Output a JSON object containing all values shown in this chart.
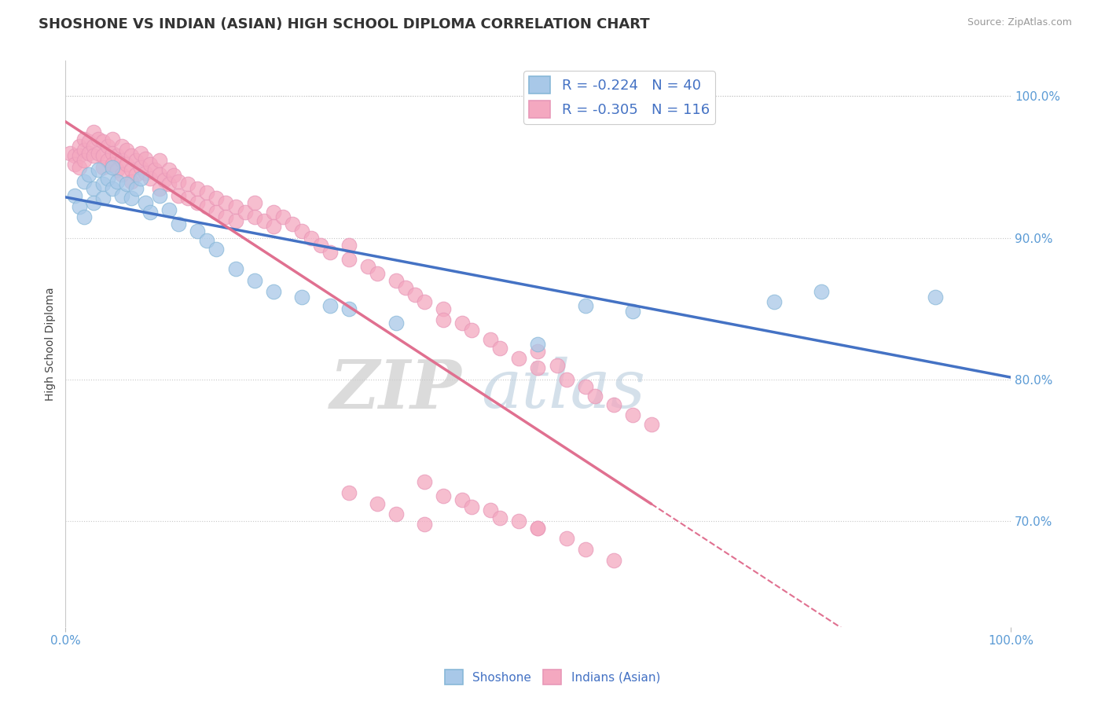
{
  "title": "SHOSHONE VS INDIAN (ASIAN) HIGH SCHOOL DIPLOMA CORRELATION CHART",
  "source": "Source: ZipAtlas.com",
  "ylabel": "High School Diploma",
  "xlim": [
    0.0,
    1.0
  ],
  "ylim": [
    0.625,
    1.025
  ],
  "yticks": [
    0.7,
    0.8,
    0.9,
    1.0
  ],
  "ytick_labels": [
    "70.0%",
    "80.0%",
    "90.0%",
    "100.0%"
  ],
  "shoshone_color": "#A8C8E8",
  "indian_color": "#F4A8C0",
  "shoshone_R": -0.224,
  "shoshone_N": 40,
  "indian_R": -0.305,
  "indian_N": 116,
  "legend_label_shoshone": "Shoshone",
  "legend_label_indian": "Indians (Asian)",
  "watermark_zip": "ZIP",
  "watermark_atlas": "atlas",
  "blue_line_color": "#4472C4",
  "pink_line_color": "#E07090",
  "shoshone_x": [
    0.01,
    0.015,
    0.02,
    0.02,
    0.025,
    0.03,
    0.03,
    0.035,
    0.04,
    0.04,
    0.045,
    0.05,
    0.05,
    0.055,
    0.06,
    0.065,
    0.07,
    0.075,
    0.08,
    0.085,
    0.09,
    0.1,
    0.11,
    0.12,
    0.14,
    0.15,
    0.16,
    0.18,
    0.2,
    0.22,
    0.25,
    0.28,
    0.3,
    0.35,
    0.5,
    0.55,
    0.6,
    0.75,
    0.8,
    0.92
  ],
  "shoshone_y": [
    0.93,
    0.922,
    0.94,
    0.915,
    0.945,
    0.935,
    0.925,
    0.948,
    0.938,
    0.928,
    0.942,
    0.95,
    0.935,
    0.94,
    0.93,
    0.938,
    0.928,
    0.935,
    0.942,
    0.925,
    0.918,
    0.93,
    0.92,
    0.91,
    0.905,
    0.898,
    0.892,
    0.878,
    0.87,
    0.862,
    0.858,
    0.852,
    0.85,
    0.84,
    0.825,
    0.852,
    0.848,
    0.855,
    0.862,
    0.858
  ],
  "indian_x": [
    0.005,
    0.01,
    0.01,
    0.015,
    0.015,
    0.015,
    0.02,
    0.02,
    0.02,
    0.025,
    0.025,
    0.03,
    0.03,
    0.03,
    0.035,
    0.035,
    0.04,
    0.04,
    0.04,
    0.045,
    0.045,
    0.05,
    0.05,
    0.05,
    0.055,
    0.055,
    0.06,
    0.06,
    0.06,
    0.065,
    0.065,
    0.07,
    0.07,
    0.07,
    0.075,
    0.075,
    0.08,
    0.08,
    0.085,
    0.085,
    0.09,
    0.09,
    0.095,
    0.1,
    0.1,
    0.1,
    0.105,
    0.11,
    0.11,
    0.115,
    0.12,
    0.12,
    0.13,
    0.13,
    0.14,
    0.14,
    0.15,
    0.15,
    0.16,
    0.16,
    0.17,
    0.17,
    0.18,
    0.18,
    0.19,
    0.2,
    0.2,
    0.21,
    0.22,
    0.22,
    0.23,
    0.24,
    0.25,
    0.26,
    0.27,
    0.28,
    0.3,
    0.3,
    0.32,
    0.33,
    0.35,
    0.36,
    0.37,
    0.38,
    0.4,
    0.4,
    0.42,
    0.43,
    0.45,
    0.46,
    0.48,
    0.5,
    0.5,
    0.52,
    0.53,
    0.55,
    0.56,
    0.58,
    0.6,
    0.62,
    0.3,
    0.33,
    0.35,
    0.38,
    0.42,
    0.45,
    0.48,
    0.5,
    0.38,
    0.4,
    0.43,
    0.46,
    0.5,
    0.53,
    0.55,
    0.58
  ],
  "indian_y": [
    0.96,
    0.958,
    0.952,
    0.965,
    0.958,
    0.95,
    0.97,
    0.962,
    0.955,
    0.968,
    0.96,
    0.975,
    0.965,
    0.958,
    0.97,
    0.96,
    0.968,
    0.958,
    0.95,
    0.965,
    0.955,
    0.97,
    0.96,
    0.952,
    0.958,
    0.948,
    0.965,
    0.955,
    0.945,
    0.962,
    0.952,
    0.958,
    0.948,
    0.94,
    0.955,
    0.945,
    0.96,
    0.95,
    0.956,
    0.946,
    0.952,
    0.942,
    0.948,
    0.955,
    0.945,
    0.935,
    0.941,
    0.948,
    0.938,
    0.944,
    0.94,
    0.93,
    0.938,
    0.928,
    0.935,
    0.925,
    0.932,
    0.922,
    0.928,
    0.918,
    0.925,
    0.915,
    0.922,
    0.912,
    0.918,
    0.925,
    0.915,
    0.912,
    0.918,
    0.908,
    0.915,
    0.91,
    0.905,
    0.9,
    0.895,
    0.89,
    0.895,
    0.885,
    0.88,
    0.875,
    0.87,
    0.865,
    0.86,
    0.855,
    0.85,
    0.842,
    0.84,
    0.835,
    0.828,
    0.822,
    0.815,
    0.82,
    0.808,
    0.81,
    0.8,
    0.795,
    0.788,
    0.782,
    0.775,
    0.768,
    0.72,
    0.712,
    0.705,
    0.698,
    0.715,
    0.708,
    0.7,
    0.695,
    0.728,
    0.718,
    0.71,
    0.702,
    0.695,
    0.688,
    0.68,
    0.672
  ]
}
